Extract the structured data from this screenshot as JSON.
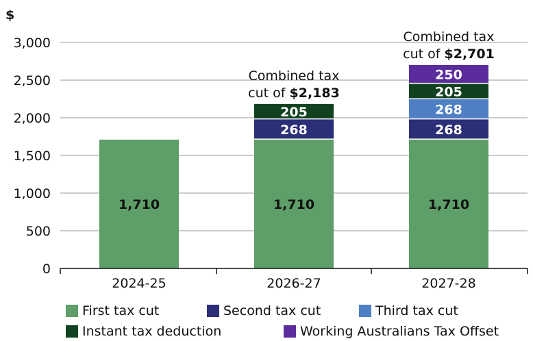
{
  "chart_data": {
    "type": "bar",
    "stacked": true,
    "ylabel": "$",
    "ylim": [
      0,
      3000
    ],
    "yticks": [
      "0",
      "500",
      "1,000",
      "1,500",
      "2,000",
      "2,500",
      "3,000"
    ],
    "ytick_values": [
      0,
      500,
      1000,
      1500,
      2000,
      2500,
      3000
    ],
    "categories": [
      "2024-25",
      "2026-27",
      "2027-28"
    ],
    "series": [
      {
        "name": "First tax cut",
        "color": "#5e9e68",
        "values": [
          1710,
          1710,
          1710
        ],
        "labels": [
          "1,710",
          "1,710",
          "1,710"
        ]
      },
      {
        "name": "Second tax cut",
        "color": "#2b2f78",
        "values": [
          0,
          268,
          268
        ],
        "labels": [
          "",
          "268",
          "268"
        ]
      },
      {
        "name": "Third tax cut",
        "color": "#4f7fc4",
        "values": [
          0,
          0,
          268
        ],
        "labels": [
          "",
          "",
          "268"
        ]
      },
      {
        "name": "Instant tax deduction",
        "color": "#11421f",
        "values": [
          0,
          205,
          205
        ],
        "labels": [
          "",
          "205",
          "205"
        ]
      },
      {
        "name": "Working Australians Tax Offset",
        "color": "#5b2c9c",
        "values": [
          0,
          0,
          250
        ],
        "labels": [
          "",
          "",
          "250"
        ]
      }
    ],
    "annotations": [
      {
        "category": "2026-27",
        "line1": "Combined tax",
        "line2_prefix": "cut of ",
        "line2_bold": "$2,183"
      },
      {
        "category": "2027-28",
        "line1": "Combined tax",
        "line2_prefix": "cut of ",
        "line2_bold": "$2,701"
      }
    ],
    "grid": true,
    "legend_position": "bottom"
  }
}
